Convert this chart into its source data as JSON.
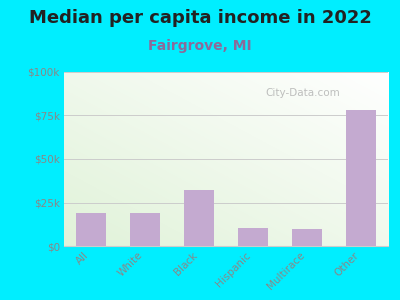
{
  "title": "Median per capita income in 2022",
  "subtitle": "Fairgrove, MI",
  "categories": [
    "All",
    "White",
    "Black",
    "Hispanic",
    "Multirace",
    "Other"
  ],
  "values": [
    19000,
    19000,
    32000,
    10500,
    9500,
    78000
  ],
  "bar_color": "#c4aad0",
  "title_fontsize": 13,
  "subtitle_fontsize": 10,
  "subtitle_color": "#8b6a9a",
  "background_outer": "#00eeff",
  "ylim": [
    0,
    100000
  ],
  "yticks": [
    0,
    25000,
    50000,
    75000,
    100000
  ],
  "ytick_labels": [
    "$0",
    "$25k",
    "$50k",
    "$75k",
    "$100k"
  ],
  "watermark": "City-Data.com",
  "tick_label_color": "#888888",
  "grid_color": "#cccccc",
  "title_color": "#222222"
}
